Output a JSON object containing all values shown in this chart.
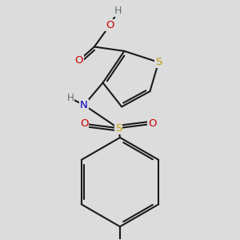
{
  "bg_color": "#dcdcdc",
  "atom_colors": {
    "S_thio": "#b8960c",
    "S_sulf": "#c8a000",
    "O": "#cc0000",
    "N": "#0000bb",
    "H": "#607070",
    "C": "#000000"
  },
  "bond_color": "#1a1a1a",
  "bond_width": 1.5
}
